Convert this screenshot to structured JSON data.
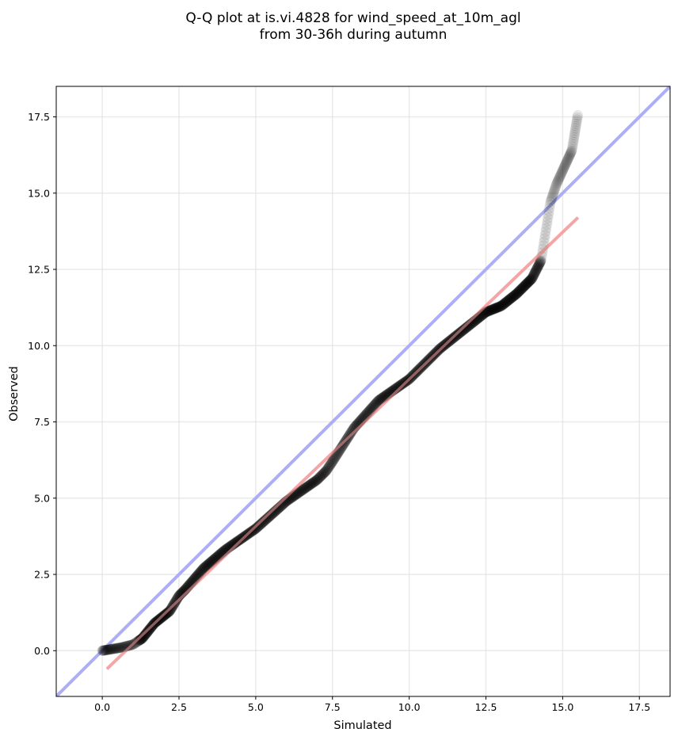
{
  "chart_data": {
    "type": "scatter",
    "title": [
      "Q-Q plot at is.vi.4828 for wind_speed_at_10m_agl",
      "from 30-36h during autumn"
    ],
    "xlabel": "Simulated",
    "ylabel": "Observed",
    "xlim": [
      -1.5,
      18.5
    ],
    "ylim": [
      -1.5,
      18.5
    ],
    "xticks": [
      0.0,
      2.5,
      5.0,
      7.5,
      10.0,
      12.5,
      15.0,
      17.5
    ],
    "yticks": [
      0.0,
      2.5,
      5.0,
      7.5,
      10.0,
      12.5,
      15.0,
      17.5
    ],
    "xtick_labels": [
      "0.0",
      "2.5",
      "5.0",
      "7.5",
      "10.0",
      "12.5",
      "15.0",
      "17.5"
    ],
    "ytick_labels": [
      "0.0",
      "2.5",
      "5.0",
      "7.5",
      "10.0",
      "12.5",
      "15.0",
      "17.5"
    ],
    "grid": true,
    "quantile_curve": {
      "x": [
        0.0,
        0.6,
        1.0,
        1.3,
        1.7,
        2.2,
        2.5,
        2.7,
        3.3,
        4.0,
        5.0,
        6.0,
        7.0,
        7.3,
        7.5,
        8.2,
        9.0,
        10.0,
        11.0,
        12.0,
        12.5,
        13.0,
        13.5,
        14.0,
        14.3,
        14.6,
        14.8,
        15.3,
        15.5
      ],
      "y": [
        0.0,
        0.1,
        0.2,
        0.4,
        0.9,
        1.3,
        1.8,
        2.0,
        2.7,
        3.3,
        4.0,
        4.9,
        5.6,
        5.9,
        6.2,
        7.3,
        8.2,
        8.9,
        9.9,
        10.7,
        11.1,
        11.3,
        11.7,
        12.2,
        12.8,
        14.7,
        15.3,
        16.4,
        17.6
      ],
      "color": "#000000",
      "alpha": "semi-transparent markers"
    },
    "series": [
      {
        "name": "",
        "type": "line",
        "x": [
          -1.5,
          18.5
        ],
        "y": [
          -1.5,
          18.5
        ],
        "color": "#a8aaf5"
      },
      {
        "name": "",
        "type": "line",
        "x": [
          0.15,
          15.5
        ],
        "y": [
          -0.6,
          14.2
        ],
        "color": "#f4a3a3"
      }
    ]
  }
}
